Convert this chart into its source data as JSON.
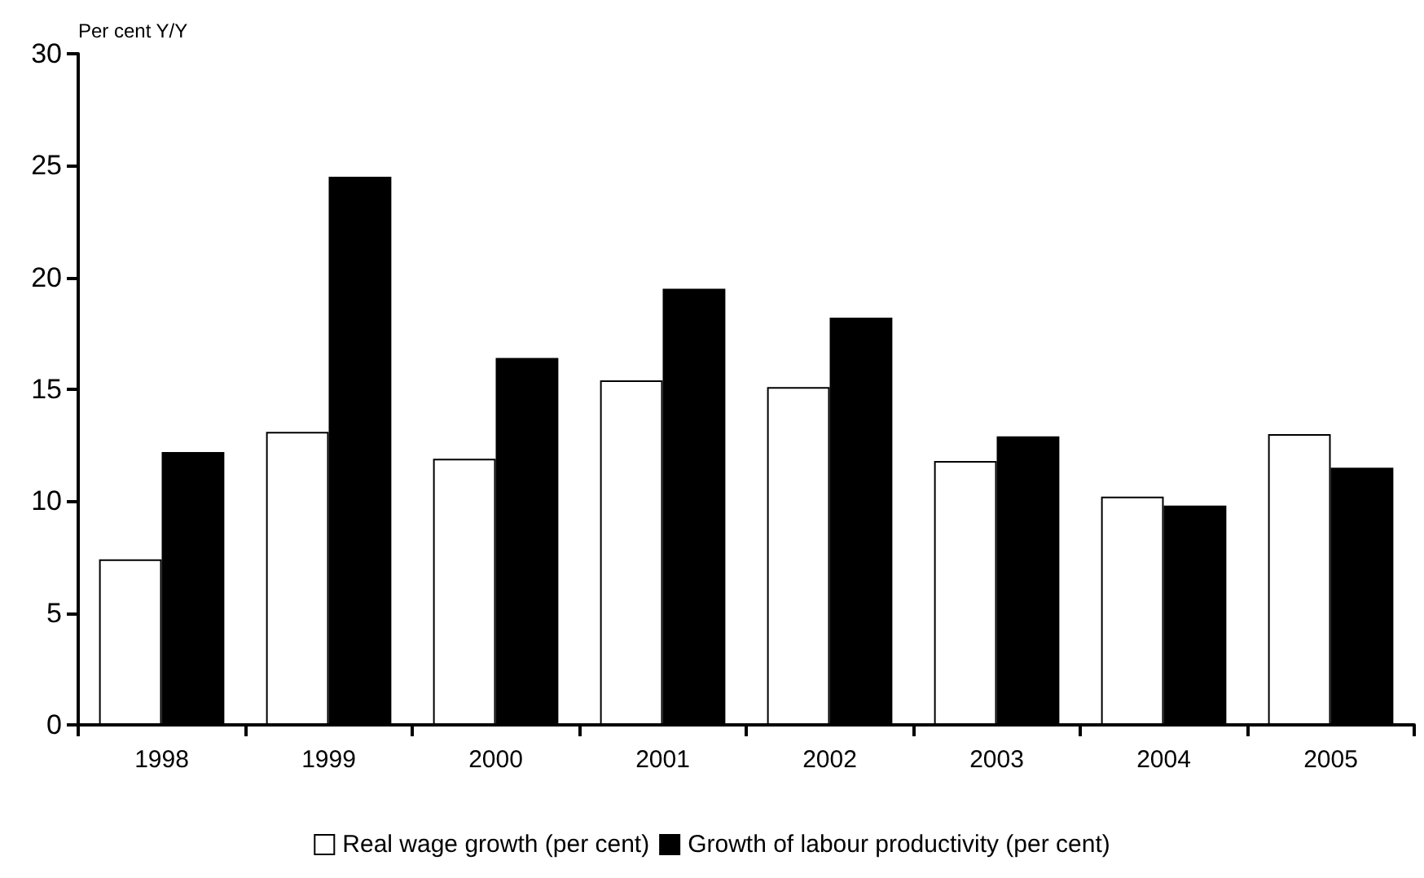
{
  "chart_data": {
    "type": "bar",
    "ylabel": "Per cent Y/Y",
    "categories": [
      "1998",
      "1999",
      "2000",
      "2001",
      "2002",
      "2003",
      "2004",
      "2005"
    ],
    "series": [
      {
        "name": "Real wage growth (per cent)",
        "color": "#ffffff",
        "values": [
          7.4,
          13.1,
          11.9,
          15.4,
          15.1,
          11.8,
          10.2,
          13.0
        ]
      },
      {
        "name": "Growth of labour productivity (per cent)",
        "color": "#000000",
        "values": [
          12.2,
          24.5,
          16.4,
          19.5,
          18.2,
          12.9,
          9.8,
          11.5
        ]
      }
    ],
    "ylim": [
      0,
      30
    ],
    "yticks": [
      0,
      5,
      10,
      15,
      20,
      25,
      30
    ],
    "grid": false,
    "legend": "bottom"
  }
}
